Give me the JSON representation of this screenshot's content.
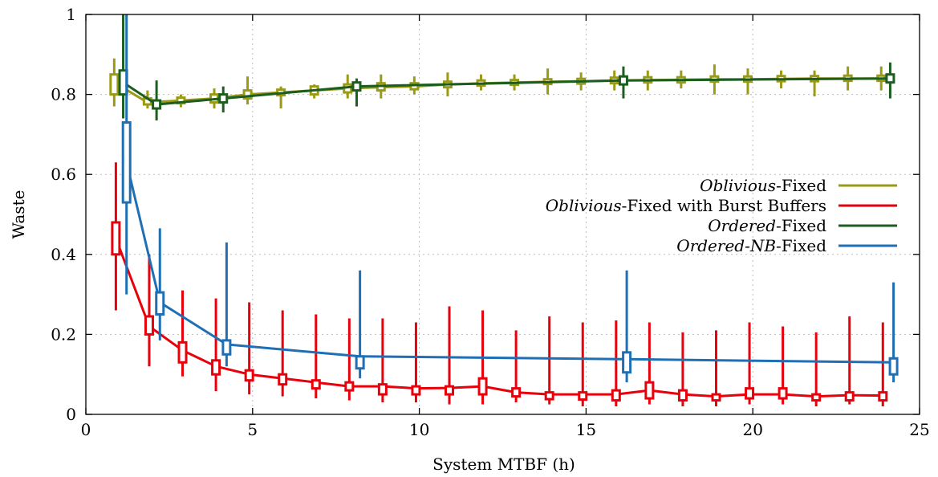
{
  "chart_data": {
    "type": "line",
    "xlabel": "System MTBF (h)",
    "ylabel": "Waste",
    "xlim": [
      0,
      25
    ],
    "ylim": [
      0,
      1
    ],
    "xticks": [
      0,
      5,
      10,
      15,
      20,
      25
    ],
    "yticks": [
      0,
      0.2,
      0.4,
      0.6,
      0.8,
      1
    ],
    "xtick_labels": [
      "0",
      "5",
      "10",
      "15",
      "20",
      "25"
    ],
    "ytick_labels": [
      "0",
      "0.2",
      "0.4",
      "0.6",
      "0.8",
      "1"
    ],
    "grid": true,
    "legend_position": "right-middle",
    "series": [
      {
        "name_italic": "Oblivious",
        "name_rest": "-Fixed",
        "color": "#9a9a14",
        "offset": -0.15,
        "x": [
          1,
          2,
          3,
          4,
          5,
          6,
          7,
          8,
          9,
          10,
          11,
          12,
          13,
          14,
          15,
          16,
          17,
          18,
          19,
          20,
          21,
          22,
          23,
          24
        ],
        "values": [
          0.83,
          0.78,
          0.785,
          0.79,
          0.8,
          0.805,
          0.81,
          0.815,
          0.818,
          0.82,
          0.825,
          0.828,
          0.83,
          0.832,
          0.833,
          0.835,
          0.836,
          0.837,
          0.838,
          0.838,
          0.839,
          0.84,
          0.84,
          0.84
        ],
        "box_low": [
          0.8,
          0.775,
          0.778,
          0.78,
          0.79,
          0.798,
          0.8,
          0.805,
          0.81,
          0.813,
          0.818,
          0.822,
          0.824,
          0.826,
          0.827,
          0.828,
          0.83,
          0.83,
          0.832,
          0.832,
          0.833,
          0.833,
          0.834,
          0.834
        ],
        "box_high": [
          0.85,
          0.79,
          0.792,
          0.8,
          0.81,
          0.812,
          0.82,
          0.825,
          0.828,
          0.828,
          0.832,
          0.835,
          0.836,
          0.838,
          0.839,
          0.842,
          0.843,
          0.843,
          0.845,
          0.845,
          0.846,
          0.846,
          0.847,
          0.847
        ],
        "whisker_low": [
          0.77,
          0.765,
          0.768,
          0.765,
          0.775,
          0.765,
          0.79,
          0.79,
          0.79,
          0.8,
          0.795,
          0.81,
          0.81,
          0.8,
          0.81,
          0.81,
          0.81,
          0.815,
          0.8,
          0.8,
          0.815,
          0.795,
          0.81,
          0.81
        ],
        "whisker_high": [
          0.89,
          0.81,
          0.8,
          0.815,
          0.845,
          0.82,
          0.825,
          0.85,
          0.85,
          0.845,
          0.855,
          0.85,
          0.85,
          0.865,
          0.855,
          0.86,
          0.86,
          0.86,
          0.875,
          0.865,
          0.86,
          0.86,
          0.87,
          0.87
        ]
      },
      {
        "name_italic": "Oblivious",
        "name_rest": "-Fixed with Burst Buffers",
        "color": "#e8000b",
        "offset": -0.1,
        "x": [
          1,
          2,
          3,
          4,
          5,
          6,
          7,
          8,
          9,
          10,
          11,
          12,
          13,
          14,
          15,
          16,
          17,
          18,
          19,
          20,
          21,
          22,
          23,
          24
        ],
        "values": [
          0.44,
          0.22,
          0.16,
          0.12,
          0.1,
          0.09,
          0.08,
          0.07,
          0.07,
          0.065,
          0.066,
          0.07,
          0.055,
          0.05,
          0.05,
          0.05,
          0.06,
          0.05,
          0.045,
          0.05,
          0.05,
          0.045,
          0.048,
          0.047
        ],
        "box_low": [
          0.4,
          0.2,
          0.13,
          0.1,
          0.085,
          0.075,
          0.065,
          0.06,
          0.05,
          0.05,
          0.05,
          0.05,
          0.045,
          0.038,
          0.037,
          0.035,
          0.04,
          0.035,
          0.035,
          0.04,
          0.04,
          0.035,
          0.035,
          0.035
        ],
        "box_high": [
          0.48,
          0.245,
          0.18,
          0.135,
          0.11,
          0.1,
          0.085,
          0.08,
          0.075,
          0.07,
          0.07,
          0.09,
          0.065,
          0.055,
          0.055,
          0.06,
          0.08,
          0.06,
          0.05,
          0.065,
          0.065,
          0.05,
          0.055,
          0.055
        ],
        "whisker_low": [
          0.26,
          0.12,
          0.095,
          0.058,
          0.05,
          0.045,
          0.04,
          0.035,
          0.03,
          0.03,
          0.025,
          0.025,
          0.03,
          0.025,
          0.02,
          0.02,
          0.025,
          0.02,
          0.02,
          0.025,
          0.025,
          0.02,
          0.025,
          0.02
        ],
        "whisker_high": [
          0.63,
          0.4,
          0.31,
          0.29,
          0.28,
          0.26,
          0.25,
          0.24,
          0.24,
          0.23,
          0.27,
          0.26,
          0.21,
          0.245,
          0.23,
          0.235,
          0.23,
          0.205,
          0.21,
          0.23,
          0.22,
          0.205,
          0.245,
          0.23
        ]
      },
      {
        "name_italic": "Ordered",
        "name_rest": "-Fixed",
        "color": "#1b5e20",
        "offset": 0.12,
        "x": [
          1,
          2,
          4,
          8,
          16,
          24
        ],
        "values": [
          0.83,
          0.775,
          0.79,
          0.82,
          0.835,
          0.84
        ],
        "box_low": [
          0.8,
          0.765,
          0.78,
          0.81,
          0.825,
          0.83
        ],
        "box_high": [
          0.86,
          0.785,
          0.8,
          0.83,
          0.845,
          0.85
        ],
        "whisker_low": [
          0.74,
          0.735,
          0.755,
          0.77,
          0.79,
          0.79
        ],
        "whisker_high": [
          1.0,
          0.835,
          0.82,
          0.84,
          0.87,
          0.88
        ]
      },
      {
        "name_italic": "Ordered-NB",
        "name_rest": "-Fixed",
        "color": "#1f6fb4",
        "offset": 0.22,
        "x": [
          1,
          2,
          4,
          8,
          16,
          24
        ],
        "values": [
          0.63,
          0.28,
          0.175,
          0.145,
          0.138,
          0.13
        ],
        "box_low": [
          0.53,
          0.25,
          0.15,
          0.115,
          0.105,
          0.1
        ],
        "box_high": [
          0.73,
          0.305,
          0.185,
          0.145,
          0.155,
          0.14
        ],
        "whisker_low": [
          0.3,
          0.185,
          0.12,
          0.09,
          0.08,
          0.08
        ],
        "whisker_high": [
          1.0,
          0.465,
          0.43,
          0.36,
          0.36,
          0.33
        ]
      }
    ]
  }
}
